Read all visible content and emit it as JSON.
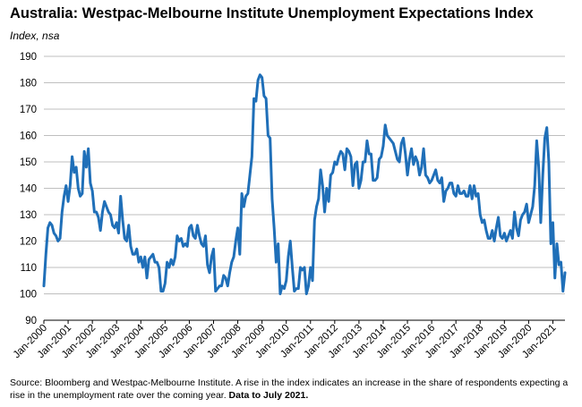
{
  "chart_data": {
    "type": "line",
    "title": "Australia: Westpac-Melbourne Institute Unemployment Expectations Index",
    "subtitle": "Index, nsa",
    "x_labels": [
      "Jan-2000",
      "Jan-2001",
      "Jan-2002",
      "Jan-2003",
      "Jan-2004",
      "Jan-2005",
      "Jan-2006",
      "Jan-2007",
      "Jan-2008",
      "Jan-2009",
      "Jan-2010",
      "Jan-2011",
      "Jan-2012",
      "Jan-2013",
      "Jan-2014",
      "Jan-2015",
      "Jan-2016",
      "Jan-2017",
      "Jan-2018",
      "Jan-2019",
      "Jan-2020",
      "Jan-2021"
    ],
    "y_ticks": [
      90,
      100,
      110,
      120,
      130,
      140,
      150,
      160,
      170,
      180,
      190
    ],
    "ylim": [
      90,
      190
    ],
    "x_range": [
      "2000-01",
      "2021-07"
    ],
    "grid": true,
    "line_color": "#1f6fb8",
    "series": [
      {
        "points": [
          [
            "2000-01",
            103
          ],
          [
            "2000-02",
            115
          ],
          [
            "2000-03",
            125
          ],
          [
            "2000-04",
            127
          ],
          [
            "2000-05",
            126
          ],
          [
            "2000-06",
            123
          ],
          [
            "2000-07",
            122
          ],
          [
            "2000-08",
            120
          ],
          [
            "2000-09",
            121
          ],
          [
            "2000-10",
            131
          ],
          [
            "2000-11",
            137
          ],
          [
            "2000-12",
            141
          ],
          [
            "2001-01",
            135
          ],
          [
            "2001-02",
            141
          ],
          [
            "2001-03",
            152
          ],
          [
            "2001-04",
            146
          ],
          [
            "2001-05",
            148
          ],
          [
            "2001-06",
            140
          ],
          [
            "2001-07",
            137
          ],
          [
            "2001-08",
            138
          ],
          [
            "2001-09",
            154
          ],
          [
            "2001-10",
            148
          ],
          [
            "2001-11",
            155
          ],
          [
            "2001-12",
            142
          ],
          [
            "2002-01",
            139
          ],
          [
            "2002-02",
            131
          ],
          [
            "2002-03",
            131
          ],
          [
            "2002-04",
            129
          ],
          [
            "2002-05",
            124
          ],
          [
            "2002-06",
            131
          ],
          [
            "2002-07",
            135
          ],
          [
            "2002-08",
            133
          ],
          [
            "2002-09",
            131
          ],
          [
            "2002-10",
            130
          ],
          [
            "2002-11",
            126
          ],
          [
            "2002-12",
            125
          ],
          [
            "2003-01",
            127
          ],
          [
            "2003-02",
            123
          ],
          [
            "2003-03",
            137
          ],
          [
            "2003-04",
            128
          ],
          [
            "2003-05",
            121
          ],
          [
            "2003-06",
            120
          ],
          [
            "2003-07",
            126
          ],
          [
            "2003-08",
            118
          ],
          [
            "2003-09",
            115
          ],
          [
            "2003-10",
            115
          ],
          [
            "2003-11",
            117
          ],
          [
            "2003-12",
            112
          ],
          [
            "2004-01",
            114
          ],
          [
            "2004-02",
            110
          ],
          [
            "2004-03",
            114
          ],
          [
            "2004-04",
            106
          ],
          [
            "2004-05",
            113
          ],
          [
            "2004-06",
            114
          ],
          [
            "2004-07",
            115
          ],
          [
            "2004-08",
            112
          ],
          [
            "2004-09",
            112
          ],
          [
            "2004-10",
            110
          ],
          [
            "2004-11",
            101
          ],
          [
            "2004-12",
            101
          ],
          [
            "2005-01",
            104
          ],
          [
            "2005-02",
            112
          ],
          [
            "2005-03",
            110
          ],
          [
            "2005-04",
            113
          ],
          [
            "2005-05",
            111
          ],
          [
            "2005-06",
            114
          ],
          [
            "2005-07",
            122
          ],
          [
            "2005-08",
            120
          ],
          [
            "2005-09",
            121
          ],
          [
            "2005-10",
            118
          ],
          [
            "2005-11",
            119
          ],
          [
            "2005-12",
            118
          ],
          [
            "2006-01",
            125
          ],
          [
            "2006-02",
            126
          ],
          [
            "2006-03",
            122
          ],
          [
            "2006-04",
            121
          ],
          [
            "2006-05",
            126
          ],
          [
            "2006-06",
            122
          ],
          [
            "2006-07",
            119
          ],
          [
            "2006-08",
            118
          ],
          [
            "2006-09",
            122
          ],
          [
            "2006-10",
            111
          ],
          [
            "2006-11",
            108
          ],
          [
            "2006-12",
            114
          ],
          [
            "2007-01",
            117
          ],
          [
            "2007-02",
            101
          ],
          [
            "2007-03",
            102
          ],
          [
            "2007-04",
            103
          ],
          [
            "2007-05",
            103
          ],
          [
            "2007-06",
            107
          ],
          [
            "2007-07",
            106
          ],
          [
            "2007-08",
            103
          ],
          [
            "2007-09",
            108
          ],
          [
            "2007-10",
            112
          ],
          [
            "2007-11",
            114
          ],
          [
            "2007-12",
            120
          ],
          [
            "2008-01",
            125
          ],
          [
            "2008-02",
            115
          ],
          [
            "2008-03",
            138
          ],
          [
            "2008-04",
            133
          ],
          [
            "2008-05",
            137
          ],
          [
            "2008-06",
            138
          ],
          [
            "2008-07",
            145
          ],
          [
            "2008-08",
            152
          ],
          [
            "2008-09",
            174
          ],
          [
            "2008-10",
            173
          ],
          [
            "2008-11",
            181
          ],
          [
            "2008-12",
            183
          ],
          [
            "2009-01",
            182
          ],
          [
            "2009-02",
            175
          ],
          [
            "2009-03",
            174
          ],
          [
            "2009-04",
            160
          ],
          [
            "2009-05",
            159
          ],
          [
            "2009-06",
            136
          ],
          [
            "2009-07",
            125
          ],
          [
            "2009-08",
            112
          ],
          [
            "2009-09",
            119
          ],
          [
            "2009-10",
            100
          ],
          [
            "2009-11",
            103
          ],
          [
            "2009-12",
            102
          ],
          [
            "2010-01",
            105
          ],
          [
            "2010-02",
            114
          ],
          [
            "2010-03",
            120
          ],
          [
            "2010-04",
            110
          ],
          [
            "2010-05",
            101
          ],
          [
            "2010-06",
            102
          ],
          [
            "2010-07",
            102
          ],
          [
            "2010-08",
            110
          ],
          [
            "2010-09",
            109
          ],
          [
            "2010-10",
            110
          ],
          [
            "2010-11",
            100
          ],
          [
            "2010-12",
            103
          ],
          [
            "2011-01",
            110
          ],
          [
            "2011-02",
            105
          ],
          [
            "2011-03",
            128
          ],
          [
            "2011-04",
            133
          ],
          [
            "2011-05",
            136
          ],
          [
            "2011-06",
            147
          ],
          [
            "2011-07",
            141
          ],
          [
            "2011-08",
            131
          ],
          [
            "2011-09",
            140
          ],
          [
            "2011-10",
            135
          ],
          [
            "2011-11",
            145
          ],
          [
            "2011-12",
            146
          ],
          [
            "2012-01",
            150
          ],
          [
            "2012-02",
            149
          ],
          [
            "2012-03",
            152
          ],
          [
            "2012-04",
            154
          ],
          [
            "2012-05",
            153
          ],
          [
            "2012-06",
            147
          ],
          [
            "2012-07",
            155
          ],
          [
            "2012-08",
            154
          ],
          [
            "2012-09",
            152
          ],
          [
            "2012-10",
            141
          ],
          [
            "2012-11",
            149
          ],
          [
            "2012-12",
            150
          ],
          [
            "2013-01",
            140
          ],
          [
            "2013-02",
            143
          ],
          [
            "2013-03",
            150
          ],
          [
            "2013-04",
            150
          ],
          [
            "2013-05",
            158
          ],
          [
            "2013-06",
            153
          ],
          [
            "2013-07",
            153
          ],
          [
            "2013-08",
            143
          ],
          [
            "2013-09",
            143
          ],
          [
            "2013-10",
            144
          ],
          [
            "2013-11",
            151
          ],
          [
            "2013-12",
            152
          ],
          [
            "2014-01",
            156
          ],
          [
            "2014-02",
            164
          ],
          [
            "2014-03",
            160
          ],
          [
            "2014-04",
            159
          ],
          [
            "2014-05",
            158
          ],
          [
            "2014-06",
            157
          ],
          [
            "2014-07",
            154
          ],
          [
            "2014-08",
            151
          ],
          [
            "2014-09",
            150
          ],
          [
            "2014-10",
            157
          ],
          [
            "2014-11",
            159
          ],
          [
            "2014-12",
            153
          ],
          [
            "2015-01",
            145
          ],
          [
            "2015-02",
            151
          ],
          [
            "2015-03",
            155
          ],
          [
            "2015-04",
            149
          ],
          [
            "2015-05",
            152
          ],
          [
            "2015-06",
            150
          ],
          [
            "2015-07",
            145
          ],
          [
            "2015-08",
            148
          ],
          [
            "2015-09",
            155
          ],
          [
            "2015-10",
            145
          ],
          [
            "2015-11",
            144
          ],
          [
            "2015-12",
            142
          ],
          [
            "2016-01",
            143
          ],
          [
            "2016-02",
            145
          ],
          [
            "2016-03",
            147
          ],
          [
            "2016-04",
            143
          ],
          [
            "2016-05",
            142
          ],
          [
            "2016-06",
            144
          ],
          [
            "2016-07",
            135
          ],
          [
            "2016-08",
            139
          ],
          [
            "2016-09",
            140
          ],
          [
            "2016-10",
            142
          ],
          [
            "2016-11",
            142
          ],
          [
            "2016-12",
            138
          ],
          [
            "2017-01",
            137
          ],
          [
            "2017-02",
            141
          ],
          [
            "2017-03",
            138
          ],
          [
            "2017-04",
            138
          ],
          [
            "2017-05",
            139
          ],
          [
            "2017-06",
            137
          ],
          [
            "2017-07",
            137
          ],
          [
            "2017-08",
            141
          ],
          [
            "2017-09",
            136
          ],
          [
            "2017-10",
            141
          ],
          [
            "2017-11",
            137
          ],
          [
            "2017-12",
            138
          ],
          [
            "2018-01",
            130
          ],
          [
            "2018-02",
            127
          ],
          [
            "2018-03",
            128
          ],
          [
            "2018-04",
            124
          ],
          [
            "2018-05",
            121
          ],
          [
            "2018-06",
            121
          ],
          [
            "2018-07",
            124
          ],
          [
            "2018-08",
            120
          ],
          [
            "2018-09",
            125
          ],
          [
            "2018-10",
            129
          ],
          [
            "2018-11",
            122
          ],
          [
            "2018-12",
            121
          ],
          [
            "2019-01",
            123
          ],
          [
            "2019-02",
            120
          ],
          [
            "2019-03",
            122
          ],
          [
            "2019-04",
            124
          ],
          [
            "2019-05",
            121
          ],
          [
            "2019-06",
            131
          ],
          [
            "2019-07",
            125
          ],
          [
            "2019-08",
            122
          ],
          [
            "2019-09",
            128
          ],
          [
            "2019-10",
            130
          ],
          [
            "2019-11",
            131
          ],
          [
            "2019-12",
            134
          ],
          [
            "2020-01",
            127
          ],
          [
            "2020-02",
            130
          ],
          [
            "2020-03",
            133
          ],
          [
            "2020-04",
            141
          ],
          [
            "2020-05",
            158
          ],
          [
            "2020-06",
            148
          ],
          [
            "2020-07",
            127
          ],
          [
            "2020-08",
            145
          ],
          [
            "2020-09",
            159
          ],
          [
            "2020-10",
            163
          ],
          [
            "2020-11",
            150
          ],
          [
            "2020-12",
            119
          ],
          [
            "2021-01",
            127
          ],
          [
            "2021-02",
            106
          ],
          [
            "2021-03",
            119
          ],
          [
            "2021-04",
            111
          ],
          [
            "2021-05",
            112
          ],
          [
            "2021-06",
            101
          ],
          [
            "2021-07",
            108
          ]
        ]
      }
    ]
  },
  "footnote": {
    "text": "Source: Bloomberg and Westpac-Melbourne Institute.  A rise in the index indicates an increase in the share of respondents expecting a rise in the unemployment rate over the coming year.",
    "bold": "Data to July 2021."
  }
}
